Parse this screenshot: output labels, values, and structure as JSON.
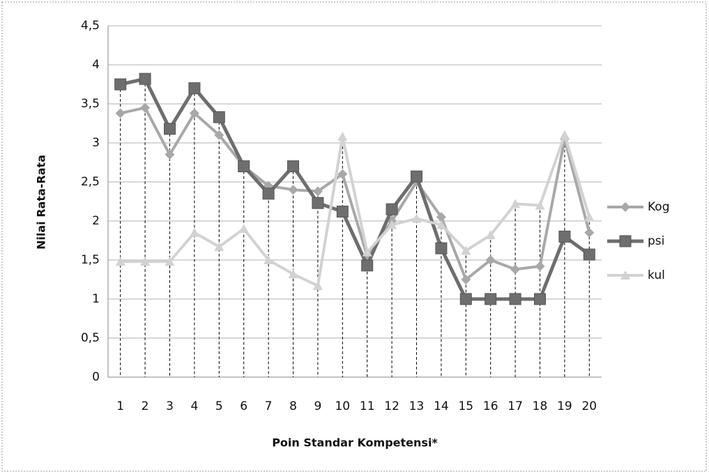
{
  "chart_data": {
    "type": "line",
    "x_label": "Poin Standar Kompetensi*",
    "y_label": "Nilai Rata-Rata",
    "categories": [
      "1",
      "2",
      "3",
      "4",
      "5",
      "6",
      "7",
      "8",
      "9",
      "10",
      "11",
      "12",
      "13",
      "14",
      "15",
      "16",
      "17",
      "18",
      "19",
      "20"
    ],
    "series": [
      {
        "name": "Kog",
        "color": "#a8a8a8",
        "marker": "diamond",
        "values": [
          3.38,
          3.45,
          2.85,
          3.38,
          3.1,
          2.7,
          2.45,
          2.4,
          2.38,
          2.6,
          1.55,
          2.0,
          2.5,
          2.05,
          1.25,
          1.5,
          1.38,
          1.42,
          3.05,
          1.85
        ]
      },
      {
        "name": "psi",
        "color": "#6e6e6e",
        "marker": "square",
        "values": [
          3.75,
          3.82,
          3.18,
          3.7,
          3.33,
          2.7,
          2.35,
          2.7,
          2.23,
          2.12,
          1.43,
          2.15,
          2.57,
          1.65,
          1,
          1,
          1,
          1,
          1.8,
          1.57
        ]
      },
      {
        "name": "kul",
        "color": "#d2d2d2",
        "marker": "triangle",
        "values": [
          1.48,
          1.48,
          1.48,
          1.85,
          1.67,
          1.9,
          1.5,
          1.32,
          1.17,
          3.08,
          1.6,
          1.95,
          2.03,
          1.95,
          1.62,
          1.82,
          2.22,
          2.2,
          3.1,
          2.05
        ]
      }
    ],
    "ylim": [
      0,
      4.5
    ],
    "yticks": [
      0,
      {
        "value": 0.5,
        "label": "0,5"
      },
      1,
      {
        "value": 1.5,
        "label": "1,5"
      },
      2,
      {
        "value": 2.5,
        "label": "2,5"
      },
      3,
      {
        "value": 3.5,
        "label": "3,5"
      },
      4,
      {
        "value": 4.5,
        "label": "4,5"
      }
    ],
    "grid": true,
    "drop_lines": true,
    "legend": "right"
  }
}
